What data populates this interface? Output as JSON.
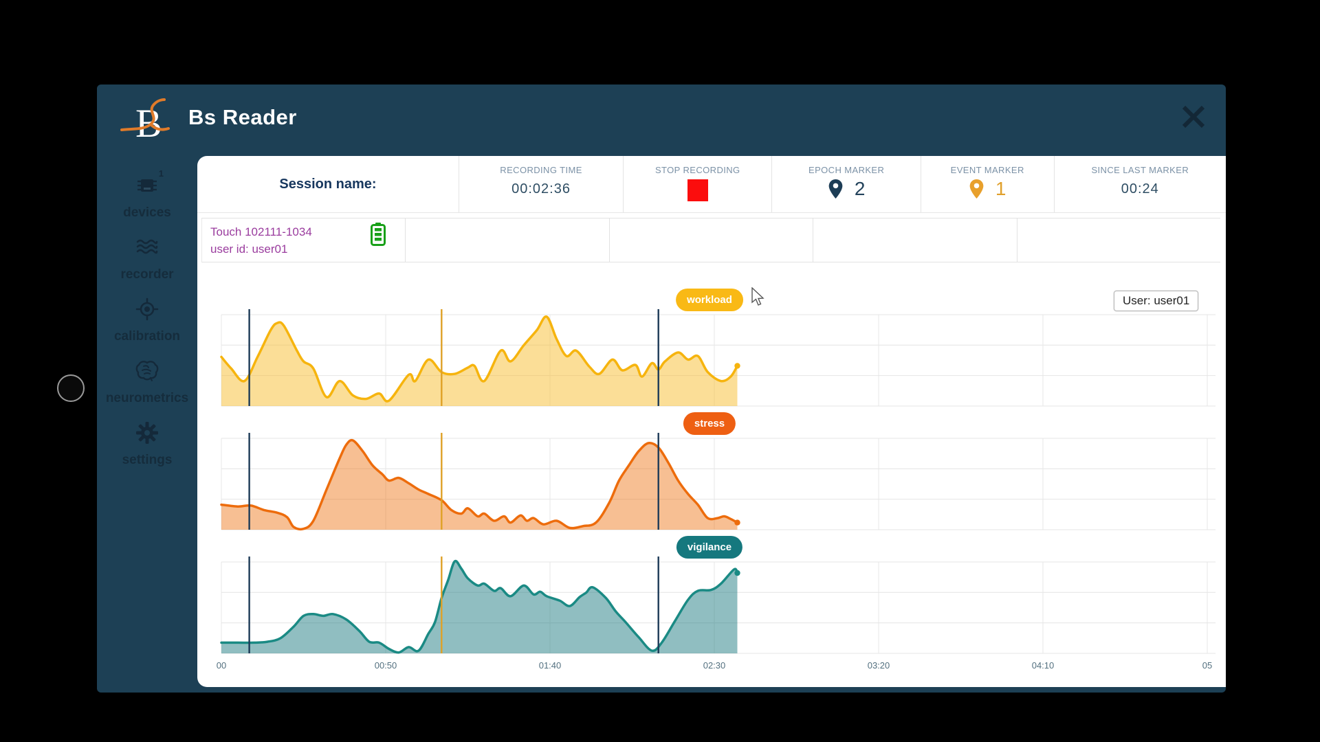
{
  "window": {
    "title": "Bs Reader",
    "close_label": "close"
  },
  "sidebar": {
    "items": [
      {
        "id": "devices",
        "label": "devices",
        "icon": "chip-icon",
        "badge": "1"
      },
      {
        "id": "recorder",
        "label": "recorder",
        "icon": "waves-icon",
        "badge": ""
      },
      {
        "id": "calibration",
        "label": "calibration",
        "icon": "target-icon",
        "badge": ""
      },
      {
        "id": "neurometrics",
        "label": "neurometrics",
        "icon": "brain-icon",
        "badge": ""
      },
      {
        "id": "settings",
        "label": "settings",
        "icon": "gear-icon",
        "badge": ""
      }
    ]
  },
  "topbar": {
    "session_label": "Session name:",
    "recording_time": {
      "label": "RECORDING TIME",
      "value": "00:02:36"
    },
    "stop_recording": {
      "label": "STOP RECORDING",
      "color": "#fb0d0d"
    },
    "epoch_marker": {
      "label": "EPOCH MARKER",
      "count": "2",
      "color": "#1d3d56"
    },
    "event_marker": {
      "label": "EVENT MARKER",
      "count": "1",
      "color": "#e8a02c"
    },
    "since_last": {
      "label": "SINCE LAST MARKER",
      "value": "00:24"
    }
  },
  "device": {
    "name": "Touch 102111-1034",
    "user_line": "user id: user01",
    "battery_icon": "battery-full-icon",
    "battery_color": "#18a018"
  },
  "user_tag": "User: user01",
  "chart_data": [
    {
      "type": "area",
      "title": "workload",
      "badge_color": "#f9b915",
      "line_color": "#f6b40e",
      "fill_color": "rgba(248,190,48,0.5)",
      "y_range": [
        0,
        100
      ],
      "x_unit": "mm:ss",
      "x_ticks": [
        {
          "t": 0,
          "label": "00"
        },
        {
          "t": 50,
          "label": "00:50"
        },
        {
          "t": 100,
          "label": "01:40"
        },
        {
          "t": 150,
          "label": "02:30"
        },
        {
          "t": 200,
          "label": "03:20"
        },
        {
          "t": 250,
          "label": "04:10"
        },
        {
          "t": 300,
          "label": "05"
        }
      ],
      "epoch_marker_times": [
        8.5,
        133
      ],
      "event_marker_times": [
        67
      ],
      "epoch_marker_color": "#1c3a57",
      "event_marker_color": "#dfa126",
      "points": [
        [
          0,
          55
        ],
        [
          3,
          42
        ],
        [
          7,
          28
        ],
        [
          11,
          55
        ],
        [
          15,
          85
        ],
        [
          17,
          93
        ],
        [
          19,
          90
        ],
        [
          23,
          62
        ],
        [
          25,
          50
        ],
        [
          28,
          42
        ],
        [
          32,
          10
        ],
        [
          36,
          28
        ],
        [
          40,
          12
        ],
        [
          44,
          8
        ],
        [
          48,
          14
        ],
        [
          51,
          6
        ],
        [
          57,
          35
        ],
        [
          59,
          28
        ],
        [
          63,
          52
        ],
        [
          67,
          38
        ],
        [
          71,
          36
        ],
        [
          75,
          43
        ],
        [
          77,
          45
        ],
        [
          80,
          28
        ],
        [
          85,
          62
        ],
        [
          88,
          50
        ],
        [
          92,
          68
        ],
        [
          96,
          85
        ],
        [
          99,
          100
        ],
        [
          102,
          75
        ],
        [
          105,
          56
        ],
        [
          108,
          62
        ],
        [
          112,
          44
        ],
        [
          115,
          36
        ],
        [
          119,
          52
        ],
        [
          122,
          40
        ],
        [
          126,
          46
        ],
        [
          128,
          33
        ],
        [
          131,
          48
        ],
        [
          133,
          41
        ],
        [
          135,
          50
        ],
        [
          139,
          60
        ],
        [
          142,
          52
        ],
        [
          145,
          56
        ],
        [
          148,
          38
        ],
        [
          152,
          28
        ],
        [
          155,
          33
        ],
        [
          157,
          45
        ]
      ]
    },
    {
      "type": "area",
      "title": "stress",
      "badge_color": "#ee5f12",
      "line_color": "#ed6c0c",
      "fill_color": "rgba(238,112,16,0.45)",
      "y_range": [
        0,
        100
      ],
      "x_unit": "mm:ss",
      "epoch_marker_times": [
        8.5,
        133
      ],
      "event_marker_times": [
        67
      ],
      "epoch_marker_color": "#1c3a57",
      "event_marker_color": "#dfa126",
      "points": [
        [
          0,
          28
        ],
        [
          5,
          26
        ],
        [
          9,
          27
        ],
        [
          13,
          22
        ],
        [
          17,
          19
        ],
        [
          20,
          14
        ],
        [
          22,
          3
        ],
        [
          25,
          1
        ],
        [
          28,
          10
        ],
        [
          32,
          45
        ],
        [
          36,
          80
        ],
        [
          38,
          95
        ],
        [
          40,
          100
        ],
        [
          43,
          88
        ],
        [
          46,
          72
        ],
        [
          49,
          62
        ],
        [
          51,
          55
        ],
        [
          54,
          58
        ],
        [
          57,
          52
        ],
        [
          60,
          45
        ],
        [
          63,
          40
        ],
        [
          67,
          33
        ],
        [
          70,
          22
        ],
        [
          73,
          18
        ],
        [
          75,
          24
        ],
        [
          78,
          15
        ],
        [
          80,
          18
        ],
        [
          83,
          10
        ],
        [
          86,
          15
        ],
        [
          88,
          8
        ],
        [
          91,
          16
        ],
        [
          93,
          10
        ],
        [
          95,
          13
        ],
        [
          98,
          6
        ],
        [
          102,
          10
        ],
        [
          106,
          2
        ],
        [
          110,
          4
        ],
        [
          114,
          8
        ],
        [
          118,
          30
        ],
        [
          121,
          55
        ],
        [
          124,
          72
        ],
        [
          127,
          88
        ],
        [
          130,
          97
        ],
        [
          133,
          92
        ],
        [
          136,
          75
        ],
        [
          139,
          55
        ],
        [
          142,
          40
        ],
        [
          145,
          28
        ],
        [
          148,
          13
        ],
        [
          151,
          13
        ],
        [
          153,
          15
        ],
        [
          155,
          12
        ],
        [
          157,
          8
        ]
      ]
    },
    {
      "type": "area",
      "title": "vigilance",
      "badge_color": "#15787e",
      "line_color": "#1a8a84",
      "fill_color": "rgba(23,120,125,0.48)",
      "y_range": [
        0,
        100
      ],
      "x_unit": "mm:ss",
      "epoch_marker_times": [
        8.5,
        133
      ],
      "event_marker_times": [
        67
      ],
      "epoch_marker_color": "#1c3a57",
      "event_marker_color": "#dfa126",
      "points": [
        [
          0,
          12
        ],
        [
          5,
          12
        ],
        [
          10,
          12
        ],
        [
          14,
          13
        ],
        [
          18,
          17
        ],
        [
          22,
          30
        ],
        [
          25,
          42
        ],
        [
          28,
          44
        ],
        [
          31,
          42
        ],
        [
          34,
          44
        ],
        [
          38,
          38
        ],
        [
          42,
          25
        ],
        [
          45,
          13
        ],
        [
          48,
          12
        ],
        [
          51,
          5
        ],
        [
          54,
          1
        ],
        [
          57,
          7
        ],
        [
          60,
          3
        ],
        [
          63,
          22
        ],
        [
          65,
          35
        ],
        [
          67,
          62
        ],
        [
          69,
          82
        ],
        [
          71,
          103
        ],
        [
          73,
          95
        ],
        [
          75,
          84
        ],
        [
          78,
          76
        ],
        [
          80,
          78
        ],
        [
          83,
          70
        ],
        [
          85,
          73
        ],
        [
          88,
          64
        ],
        [
          92,
          76
        ],
        [
          95,
          66
        ],
        [
          97,
          69
        ],
        [
          99,
          64
        ],
        [
          103,
          59
        ],
        [
          106,
          53
        ],
        [
          109,
          63
        ],
        [
          111,
          68
        ],
        [
          113,
          74
        ],
        [
          117,
          62
        ],
        [
          120,
          47
        ],
        [
          123,
          35
        ],
        [
          127,
          18
        ],
        [
          131,
          3
        ],
        [
          134,
          12
        ],
        [
          138,
          36
        ],
        [
          142,
          60
        ],
        [
          145,
          70
        ],
        [
          149,
          71
        ],
        [
          152,
          78
        ],
        [
          156,
          94
        ],
        [
          157,
          90
        ]
      ]
    }
  ]
}
